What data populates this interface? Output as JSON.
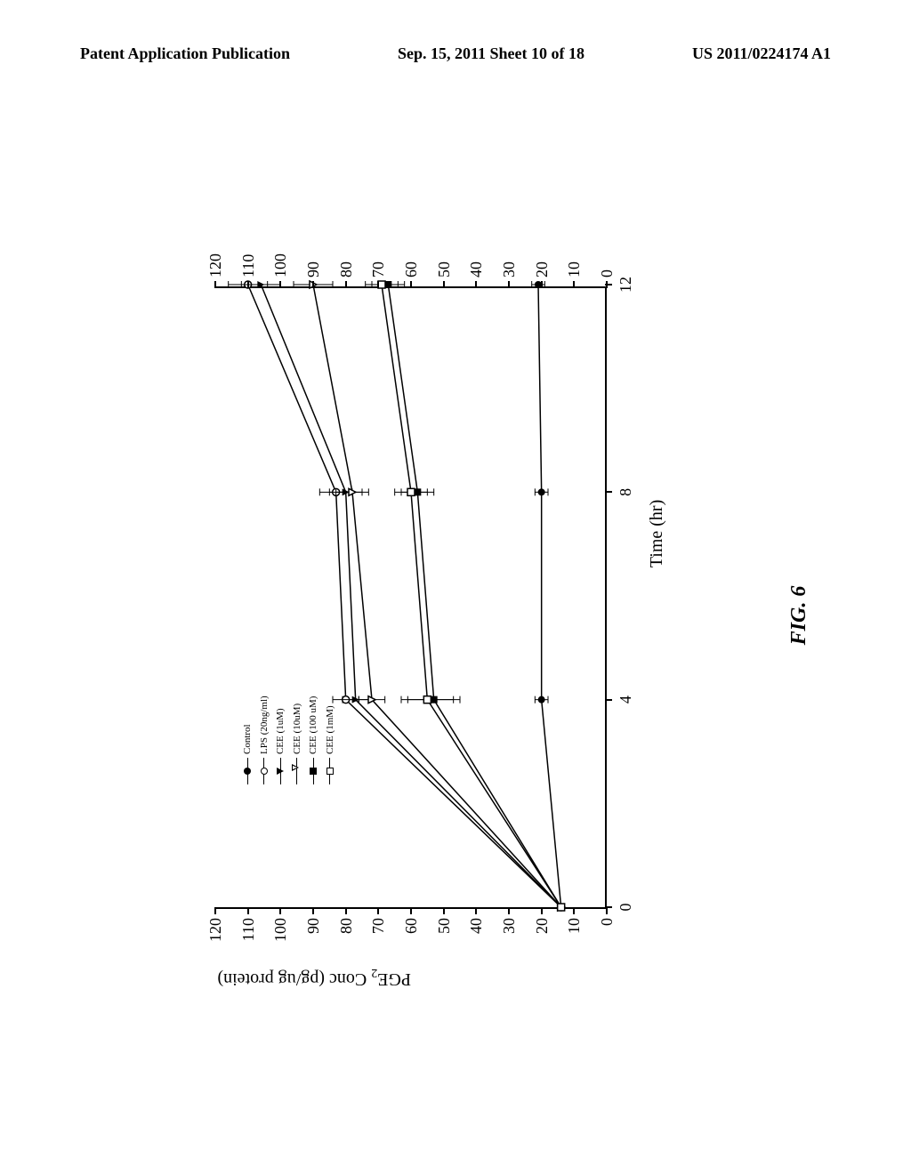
{
  "header": {
    "left": "Patent Application Publication",
    "center": "Sep. 15, 2011  Sheet 10 of 18",
    "right": "US 2011/0224174 A1"
  },
  "figure_label": "FIG. 6",
  "chart": {
    "type": "line",
    "x_axis": {
      "title": "Time (hr)",
      "ticks": [
        0,
        4,
        8,
        12
      ],
      "xlim": [
        0,
        12
      ],
      "label_fontsize": 18,
      "title_fontsize": 20
    },
    "y_axis": {
      "title_html": "PGE<sub>2</sub> Conc (pg/ug protein)",
      "ticks": [
        0,
        10,
        20,
        30,
        40,
        50,
        60,
        70,
        80,
        90,
        100,
        110,
        120
      ],
      "ylim": [
        0,
        120
      ],
      "label_fontsize": 18,
      "title_fontsize": 20,
      "dual_side_labels": true
    },
    "series": [
      {
        "name": "Control",
        "marker": "circle-filled",
        "color": "#000000",
        "x": [
          0,
          4,
          8,
          12
        ],
        "y": [
          14,
          20,
          20,
          21
        ],
        "err": [
          0,
          2,
          2,
          2
        ]
      },
      {
        "name": "LPS (20ng/ml)",
        "marker": "circle-open",
        "color": "#000000",
        "x": [
          0,
          4,
          8,
          12
        ],
        "y": [
          14,
          80,
          83,
          110
        ],
        "err": [
          0,
          4,
          5,
          6
        ]
      },
      {
        "name": "CEE (1uM)",
        "marker": "tri-filled",
        "color": "#000000",
        "x": [
          0,
          4,
          8,
          12
        ],
        "y": [
          14,
          77,
          80,
          106
        ],
        "err": [
          0,
          4,
          5,
          6
        ]
      },
      {
        "name": "CEE (10uM)",
        "marker": "tri-open",
        "color": "#000000",
        "x": [
          0,
          4,
          8,
          12
        ],
        "y": [
          14,
          72,
          78,
          90
        ],
        "err": [
          0,
          4,
          5,
          6
        ]
      },
      {
        "name": "CEE (100 uM)",
        "marker": "square-filled",
        "color": "#000000",
        "x": [
          0,
          4,
          8,
          12
        ],
        "y": [
          14,
          53,
          58,
          67
        ],
        "err": [
          0,
          8,
          5,
          5
        ]
      },
      {
        "name": "CEE (1mM)",
        "marker": "square-open",
        "color": "#000000",
        "x": [
          0,
          4,
          8,
          12
        ],
        "y": [
          14,
          55,
          60,
          69
        ],
        "err": [
          0,
          8,
          5,
          5
        ]
      }
    ],
    "legend_labels": [
      "Control",
      "LPS (20ng/ml)",
      "CEE (1uM)",
      "CEE (10uM)",
      "CEE (100 uM)",
      "CEE (1mM)"
    ],
    "line_width": 1.5,
    "errorbar_cap_width": 8,
    "plot_background": "#ffffff",
    "axis_color": "#000000",
    "marker_size": 8
  }
}
